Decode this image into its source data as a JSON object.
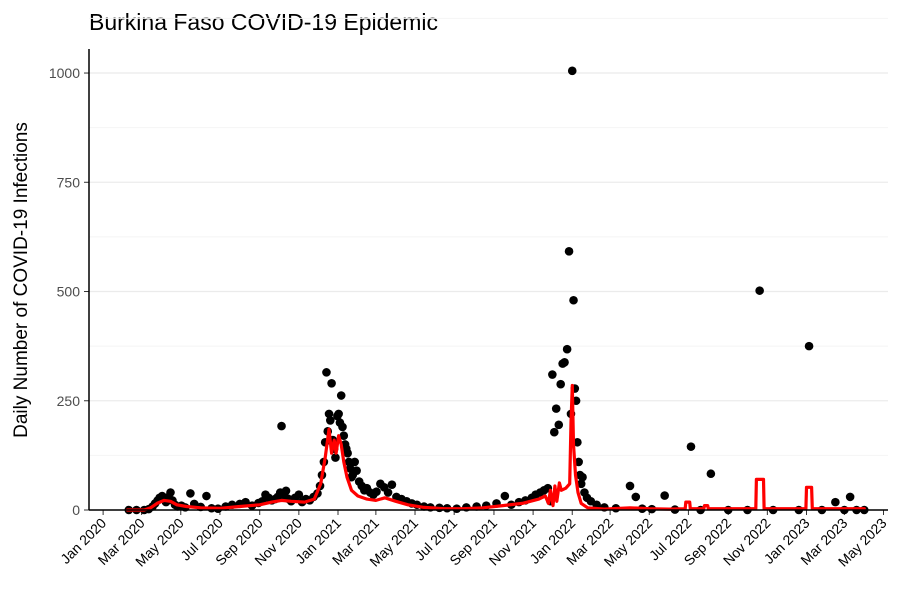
{
  "chart_data": {
    "type": "scatter",
    "title": "Burkina Faso COVID-19 Epidemic",
    "xlabel": "",
    "ylabel": "Daily Number of COVID-19 Infections",
    "x_ticks": [
      "Jan 2020",
      "Mar 2020",
      "May 2020",
      "Jul 2020",
      "Sep 2020",
      "Nov 2020",
      "Jan 2021",
      "Mar 2021",
      "May 2021",
      "Jul 2021",
      "Sep 2021",
      "Nov 2021",
      "Jan 2022",
      "Mar 2022",
      "May 2022",
      "Jul 2022",
      "Sep 2022",
      "Nov 2022",
      "Jan 2023",
      "Mar 2023",
      "May 2023"
    ],
    "x_tick_dates": [
      "2020-01-01",
      "2020-03-01",
      "2020-05-01",
      "2020-07-01",
      "2020-09-01",
      "2020-11-01",
      "2021-01-01",
      "2021-03-01",
      "2021-05-01",
      "2021-07-01",
      "2021-09-01",
      "2021-11-01",
      "2022-01-01",
      "2022-03-01",
      "2022-05-01",
      "2022-07-01",
      "2022-09-01",
      "2022-11-01",
      "2023-01-01",
      "2023-03-01",
      "2023-05-01"
    ],
    "y_ticks": [
      "0",
      "250",
      "500",
      "750",
      "1000"
    ],
    "xlim": [
      "2019-12-10",
      "2023-05-08"
    ],
    "ylim": [
      0,
      1055
    ],
    "grid": true,
    "series": [
      {
        "type": "scatter",
        "color": "#000000",
        "points": [
          [
            "2020-02-10",
            0
          ],
          [
            "2020-02-22",
            0
          ],
          [
            "2020-03-05",
            0
          ],
          [
            "2020-03-12",
            2
          ],
          [
            "2020-03-18",
            8
          ],
          [
            "2020-03-22",
            15
          ],
          [
            "2020-03-26",
            22
          ],
          [
            "2020-03-29",
            28
          ],
          [
            "2020-04-02",
            32
          ],
          [
            "2020-04-05",
            25
          ],
          [
            "2020-04-08",
            18
          ],
          [
            "2020-04-12",
            30
          ],
          [
            "2020-04-15",
            40
          ],
          [
            "2020-04-18",
            22
          ],
          [
            "2020-04-22",
            12
          ],
          [
            "2020-04-26",
            8
          ],
          [
            "2020-05-02",
            10
          ],
          [
            "2020-05-08",
            6
          ],
          [
            "2020-05-16",
            38
          ],
          [
            "2020-05-22",
            14
          ],
          [
            "2020-06-01",
            7
          ],
          [
            "2020-06-10",
            32
          ],
          [
            "2020-06-18",
            4
          ],
          [
            "2020-06-28",
            3
          ],
          [
            "2020-07-10",
            8
          ],
          [
            "2020-07-20",
            12
          ],
          [
            "2020-08-01",
            14
          ],
          [
            "2020-08-10",
            18
          ],
          [
            "2020-08-20",
            10
          ],
          [
            "2020-08-30",
            16
          ],
          [
            "2020-09-05",
            20
          ],
          [
            "2020-09-10",
            35
          ],
          [
            "2020-09-15",
            28
          ],
          [
            "2020-09-20",
            22
          ],
          [
            "2020-09-25",
            25
          ],
          [
            "2020-09-29",
            30
          ],
          [
            "2020-10-03",
            40
          ],
          [
            "2020-10-05",
            192
          ],
          [
            "2020-10-08",
            32
          ],
          [
            "2020-10-12",
            44
          ],
          [
            "2020-10-15",
            26
          ],
          [
            "2020-10-20",
            20
          ],
          [
            "2020-10-26",
            28
          ],
          [
            "2020-11-01",
            35
          ],
          [
            "2020-11-06",
            18
          ],
          [
            "2020-11-12",
            25
          ],
          [
            "2020-11-18",
            22
          ],
          [
            "2020-11-24",
            30
          ],
          [
            "2020-11-30",
            38
          ],
          [
            "2020-12-04",
            55
          ],
          [
            "2020-12-07",
            80
          ],
          [
            "2020-12-10",
            110
          ],
          [
            "2020-12-12",
            155
          ],
          [
            "2020-12-14",
            315
          ],
          [
            "2020-12-16",
            180
          ],
          [
            "2020-12-18",
            220
          ],
          [
            "2020-12-20",
            205
          ],
          [
            "2020-12-22",
            290
          ],
          [
            "2020-12-24",
            160
          ],
          [
            "2020-12-26",
            140
          ],
          [
            "2020-12-28",
            120
          ],
          [
            "2020-12-31",
            215
          ],
          [
            "2021-01-02",
            220
          ],
          [
            "2021-01-04",
            200
          ],
          [
            "2021-01-06",
            262
          ],
          [
            "2021-01-08",
            190
          ],
          [
            "2021-01-10",
            170
          ],
          [
            "2021-01-12",
            150
          ],
          [
            "2021-01-14",
            140
          ],
          [
            "2021-01-16",
            130
          ],
          [
            "2021-01-18",
            110
          ],
          [
            "2021-01-20",
            95
          ],
          [
            "2021-01-22",
            75
          ],
          [
            "2021-01-24",
            80
          ],
          [
            "2021-01-27",
            110
          ],
          [
            "2021-01-30",
            90
          ],
          [
            "2021-02-03",
            65
          ],
          [
            "2021-02-07",
            55
          ],
          [
            "2021-02-11",
            45
          ],
          [
            "2021-02-15",
            50
          ],
          [
            "2021-02-20",
            40
          ],
          [
            "2021-02-25",
            35
          ],
          [
            "2021-03-02",
            42
          ],
          [
            "2021-03-08",
            60
          ],
          [
            "2021-03-14",
            52
          ],
          [
            "2021-03-20",
            40
          ],
          [
            "2021-03-26",
            58
          ],
          [
            "2021-04-02",
            30
          ],
          [
            "2021-04-10",
            25
          ],
          [
            "2021-04-18",
            20
          ],
          [
            "2021-04-26",
            15
          ],
          [
            "2021-05-04",
            12
          ],
          [
            "2021-05-15",
            8
          ],
          [
            "2021-05-25",
            6
          ],
          [
            "2021-06-08",
            5
          ],
          [
            "2021-06-20",
            4
          ],
          [
            "2021-07-05",
            3
          ],
          [
            "2021-07-20",
            6
          ],
          [
            "2021-08-05",
            8
          ],
          [
            "2021-08-20",
            10
          ],
          [
            "2021-09-05",
            15
          ],
          [
            "2021-09-18",
            32
          ],
          [
            "2021-09-28",
            12
          ],
          [
            "2021-10-10",
            18
          ],
          [
            "2021-10-20",
            22
          ],
          [
            "2021-10-30",
            28
          ],
          [
            "2021-11-05",
            35
          ],
          [
            "2021-11-12",
            40
          ],
          [
            "2021-11-18",
            45
          ],
          [
            "2021-11-24",
            50
          ],
          [
            "2021-11-28",
            20
          ],
          [
            "2021-12-01",
            310
          ],
          [
            "2021-12-04",
            178
          ],
          [
            "2021-12-07",
            232
          ],
          [
            "2021-12-11",
            195
          ],
          [
            "2021-12-14",
            288
          ],
          [
            "2021-12-17",
            335
          ],
          [
            "2021-12-20",
            338
          ],
          [
            "2021-12-24",
            368
          ],
          [
            "2021-12-27",
            592
          ],
          [
            "2021-12-30",
            220
          ],
          [
            "2022-01-01",
            1005
          ],
          [
            "2022-01-03",
            480
          ],
          [
            "2022-01-05",
            278
          ],
          [
            "2022-01-07",
            250
          ],
          [
            "2022-01-09",
            155
          ],
          [
            "2022-01-11",
            110
          ],
          [
            "2022-01-13",
            80
          ],
          [
            "2022-01-15",
            60
          ],
          [
            "2022-01-17",
            75
          ],
          [
            "2022-01-20",
            40
          ],
          [
            "2022-01-24",
            28
          ],
          [
            "2022-01-30",
            20
          ],
          [
            "2022-02-08",
            12
          ],
          [
            "2022-02-20",
            6
          ],
          [
            "2022-03-10",
            4
          ],
          [
            "2022-04-01",
            55
          ],
          [
            "2022-04-10",
            30
          ],
          [
            "2022-04-20",
            3
          ],
          [
            "2022-05-05",
            2
          ],
          [
            "2022-05-25",
            33
          ],
          [
            "2022-06-10",
            1
          ],
          [
            "2022-07-05",
            145
          ],
          [
            "2022-07-20",
            0
          ],
          [
            "2022-08-05",
            83
          ],
          [
            "2022-09-01",
            0
          ],
          [
            "2022-10-01",
            0
          ],
          [
            "2022-10-20",
            502
          ],
          [
            "2022-11-10",
            0
          ],
          [
            "2022-12-20",
            0
          ],
          [
            "2023-01-05",
            375
          ],
          [
            "2023-01-25",
            0
          ],
          [
            "2023-02-15",
            18
          ],
          [
            "2023-03-01",
            0
          ],
          [
            "2023-03-10",
            30
          ],
          [
            "2023-03-20",
            0
          ],
          [
            "2023-04-01",
            0
          ]
        ]
      },
      {
        "type": "line",
        "color": "#ff0000",
        "points": [
          [
            "2020-02-08",
            0
          ],
          [
            "2020-03-05",
            0
          ],
          [
            "2020-03-15",
            5
          ],
          [
            "2020-03-25",
            15
          ],
          [
            "2020-04-05",
            22
          ],
          [
            "2020-04-15",
            20
          ],
          [
            "2020-04-25",
            12
          ],
          [
            "2020-05-10",
            8
          ],
          [
            "2020-06-01",
            5
          ],
          [
            "2020-07-01",
            4
          ],
          [
            "2020-08-01",
            8
          ],
          [
            "2020-09-01",
            12
          ],
          [
            "2020-09-20",
            18
          ],
          [
            "2020-10-05",
            22
          ],
          [
            "2020-10-20",
            20
          ],
          [
            "2020-11-10",
            18
          ],
          [
            "2020-11-25",
            25
          ],
          [
            "2020-12-05",
            60
          ],
          [
            "2020-12-12",
            120
          ],
          [
            "2020-12-18",
            185
          ],
          [
            "2020-12-22",
            130
          ],
          [
            "2020-12-26",
            160
          ],
          [
            "2020-12-29",
            130
          ],
          [
            "2021-01-02",
            170
          ],
          [
            "2021-01-06",
            150
          ],
          [
            "2021-01-10",
            110
          ],
          [
            "2021-01-15",
            75
          ],
          [
            "2021-01-22",
            45
          ],
          [
            "2021-02-01",
            32
          ],
          [
            "2021-02-15",
            25
          ],
          [
            "2021-03-01",
            22
          ],
          [
            "2021-03-15",
            28
          ],
          [
            "2021-04-01",
            20
          ],
          [
            "2021-04-20",
            12
          ],
          [
            "2021-05-15",
            6
          ],
          [
            "2021-06-15",
            3
          ],
          [
            "2021-07-15",
            3
          ],
          [
            "2021-08-15",
            5
          ],
          [
            "2021-09-15",
            10
          ],
          [
            "2021-10-15",
            15
          ],
          [
            "2021-11-10",
            25
          ],
          [
            "2021-11-20",
            32
          ],
          [
            "2021-11-25",
            15
          ],
          [
            "2021-11-28",
            45
          ],
          [
            "2021-12-02",
            10
          ],
          [
            "2021-12-05",
            55
          ],
          [
            "2021-12-08",
            20
          ],
          [
            "2021-12-12",
            62
          ],
          [
            "2021-12-15",
            45
          ],
          [
            "2021-12-22",
            50
          ],
          [
            "2021-12-28",
            60
          ],
          [
            "2021-12-30",
            200
          ],
          [
            "2022-01-01",
            285
          ],
          [
            "2022-01-03",
            150
          ],
          [
            "2022-01-06",
            80
          ],
          [
            "2022-01-10",
            40
          ],
          [
            "2022-01-15",
            15
          ],
          [
            "2022-01-25",
            5
          ],
          [
            "2022-02-20",
            2
          ],
          [
            "2022-04-01",
            5
          ],
          [
            "2022-05-01",
            3
          ],
          [
            "2022-06-01",
            2
          ],
          [
            "2022-06-26",
            3
          ],
          [
            "2022-06-27",
            18
          ],
          [
            "2022-07-03",
            18
          ],
          [
            "2022-07-04",
            3
          ],
          [
            "2022-07-25",
            3
          ],
          [
            "2022-07-26",
            10
          ],
          [
            "2022-07-31",
            10
          ],
          [
            "2022-08-01",
            3
          ],
          [
            "2022-10-14",
            3
          ],
          [
            "2022-10-15",
            70
          ],
          [
            "2022-10-26",
            70
          ],
          [
            "2022-10-27",
            3
          ],
          [
            "2022-12-31",
            3
          ],
          [
            "2023-01-01",
            52
          ],
          [
            "2023-01-09",
            52
          ],
          [
            "2023-01-10",
            3
          ],
          [
            "2023-04-01",
            3
          ]
        ]
      }
    ]
  }
}
